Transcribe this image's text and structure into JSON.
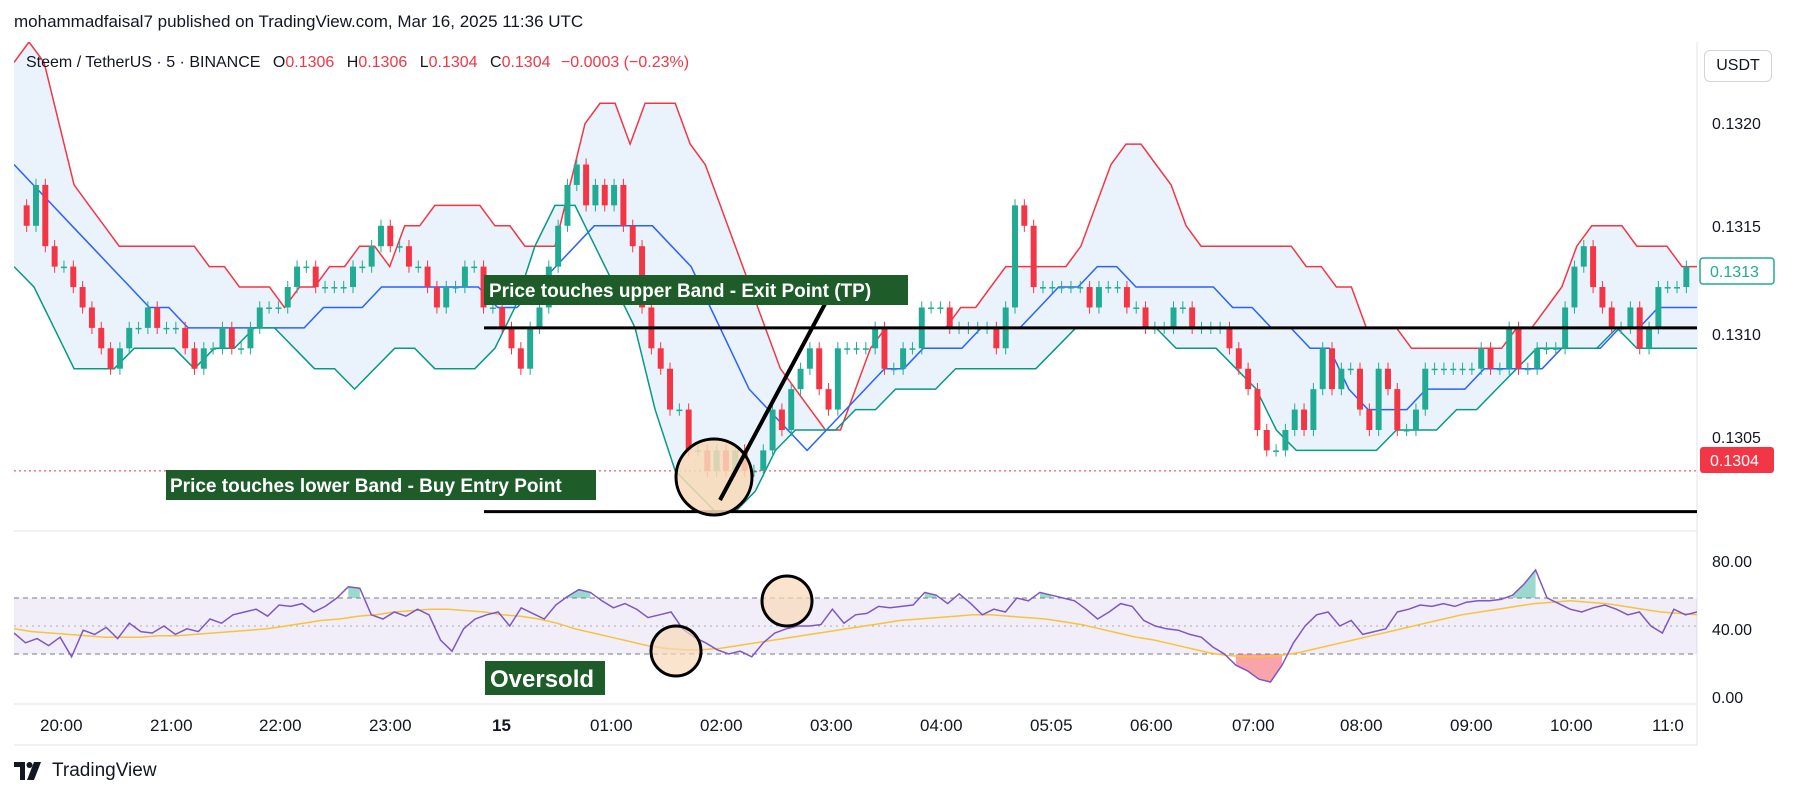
{
  "header": {
    "published": "mohammadfaisal7 published on TradingView.com, Mar 16, 2025 11:36 UTC"
  },
  "symbol_bar": {
    "symbol": "Steem / TetherUS · 5 · BINANCE",
    "o_label": "O",
    "o_value": "0.1306",
    "h_label": "H",
    "h_value": "0.1306",
    "l_label": "L",
    "l_value": "0.1304",
    "c_label": "C",
    "c_value": "0.1304",
    "change": "−0.0003 (−0.23%)"
  },
  "currency_button": "USDT",
  "price_axis": {
    "ticks": [
      "0.1320",
      "0.1315",
      "0.1310",
      "0.1305"
    ],
    "current_price": "0.1304",
    "marker_price": "0.1313"
  },
  "rsi_axis": {
    "ticks": [
      "80.00",
      "40.00",
      "0.00"
    ]
  },
  "time_axis": [
    "20:00",
    "21:00",
    "22:00",
    "23:00",
    "15",
    "01:00",
    "02:00",
    "03:00",
    "04:00",
    "05:05",
    "06:00",
    "07:00",
    "08:00",
    "09:00",
    "10:00",
    "11:0"
  ],
  "annotations": {
    "exit": "Price touches upper Band - Exit Point (TP)",
    "entry": "Price touches lower Band - Buy Entry Point",
    "oversold": "Oversold"
  },
  "footer": {
    "brand": "TradingView"
  },
  "colors": {
    "up": "#22ab94",
    "down": "#f23645",
    "upper_band": "#f23645",
    "lower_band": "#089981",
    "basis": "#2962ff",
    "band_fill": "#eaf3fb",
    "rsi_line": "#7e57c2",
    "rsi_ma": "#f7c33b",
    "annotation_bg": "#1e5c2a",
    "circle_fill": "#f8d9b8"
  },
  "chart_data": [
    {
      "type": "candlestick",
      "title": "Steem / TetherUS · 5 · BINANCE",
      "ylim": [
        0.13012,
        0.1325
      ],
      "y_ticks": [
        0.1305,
        0.131,
        0.1315,
        0.132
      ],
      "x_ticks": [
        "20:00",
        "21:00",
        "22:00",
        "23:00",
        "15",
        "01:00",
        "02:00",
        "03:00",
        "04:00",
        "05:05",
        "06:00",
        "07:00",
        "08:00",
        "09:00",
        "10:00",
        "11:0"
      ],
      "indicators": [
        "Bollinger Bands upper",
        "Bollinger Bands basis",
        "Bollinger Bands lower"
      ],
      "last_price": 0.1304,
      "horizontal_lines": [
        0.1311,
        0.1302
      ],
      "closes": [
        0.1316,
        0.1318,
        0.1315,
        0.1314,
        0.1314,
        0.1313,
        0.1312,
        0.1311,
        0.131,
        0.1309,
        0.131,
        0.1311,
        0.1311,
        0.1312,
        0.1311,
        0.1311,
        0.1311,
        0.131,
        0.1309,
        0.131,
        0.131,
        0.1311,
        0.131,
        0.131,
        0.1311,
        0.1312,
        0.1312,
        0.1312,
        0.1313,
        0.1314,
        0.1314,
        0.1313,
        0.1313,
        0.1313,
        0.1313,
        0.1314,
        0.1314,
        0.1315,
        0.1316,
        0.1315,
        0.1315,
        0.1314,
        0.1314,
        0.1313,
        0.1312,
        0.1313,
        0.1313,
        0.1314,
        0.1314,
        0.1312,
        0.1312,
        0.1311,
        0.131,
        0.1309,
        0.1311,
        0.1312,
        0.1314,
        0.1316,
        0.1318,
        0.1319,
        0.1317,
        0.1318,
        0.1317,
        0.1318,
        0.1316,
        0.1315,
        0.1312,
        0.131,
        0.1309,
        0.1307,
        0.1307,
        0.1305,
        0.1305,
        0.1304,
        0.1305,
        0.1304,
        0.1305,
        0.1304,
        0.1304,
        0.1305,
        0.1307,
        0.1306,
        0.1308,
        0.1309,
        0.131,
        0.1308,
        0.1307,
        0.131,
        0.131,
        0.131,
        0.131,
        0.1311,
        0.1309,
        0.1309,
        0.131,
        0.131,
        0.1312,
        0.1312,
        0.1312,
        0.1311,
        0.1311,
        0.1311,
        0.1311,
        0.1311,
        0.131,
        0.1312,
        0.1317,
        0.1316,
        0.1313,
        0.1313,
        0.1313,
        0.1313,
        0.1313,
        0.1313,
        0.1312,
        0.1313,
        0.1313,
        0.1313,
        0.1312,
        0.1312,
        0.1311,
        0.1311,
        0.1311,
        0.1312,
        0.1312,
        0.1311,
        0.1311,
        0.1311,
        0.1311,
        0.131,
        0.1309,
        0.1308,
        0.1306,
        0.1305,
        0.1305,
        0.1306,
        0.1307,
        0.1306,
        0.1308,
        0.131,
        0.1308,
        0.1309,
        0.1309,
        0.1307,
        0.1306,
        0.1309,
        0.1308,
        0.1306,
        0.1306,
        0.1307,
        0.1309,
        0.1309,
        0.1309,
        0.1309,
        0.1309,
        0.1309,
        0.131,
        0.1309,
        0.1309,
        0.1311,
        0.1309,
        0.1309,
        0.131,
        0.131,
        0.131,
        0.1312,
        0.1314,
        0.1315,
        0.1313,
        0.1312,
        0.1311,
        0.1311,
        0.1312,
        0.131,
        0.1311,
        0.1313,
        0.1313,
        0.1313,
        0.1314
      ],
      "bb_upper": [
        0.1324,
        0.1325,
        0.1324,
        0.1321,
        0.1318,
        0.1317,
        0.1316,
        0.1315,
        0.1315,
        0.1315,
        0.1315,
        0.1315,
        0.1315,
        0.1314,
        0.1314,
        0.1313,
        0.1313,
        0.1313,
        0.1312,
        0.1313,
        0.1313,
        0.1314,
        0.1314,
        0.1315,
        0.1315,
        0.1314,
        0.1316,
        0.1316,
        0.1317,
        0.1317,
        0.1317,
        0.1317,
        0.1316,
        0.1316,
        0.1315,
        0.1315,
        0.1315,
        0.1318,
        0.1321,
        0.1322,
        0.1322,
        0.132,
        0.1322,
        0.1322,
        0.1322,
        0.132,
        0.1319,
        0.1317,
        0.1315,
        0.1313,
        0.1311,
        0.1309,
        0.1308,
        0.1307,
        0.1306,
        0.1306,
        0.1308,
        0.131,
        0.1311,
        0.1311,
        0.1311,
        0.1311,
        0.1311,
        0.1312,
        0.1312,
        0.1313,
        0.1314,
        0.1314,
        0.1314,
        0.1314,
        0.1314,
        0.1315,
        0.1317,
        0.1319,
        0.132,
        0.132,
        0.1319,
        0.1318,
        0.1316,
        0.1315,
        0.1315,
        0.1315,
        0.1315,
        0.1315,
        0.1315,
        0.1315,
        0.1314,
        0.1314,
        0.1313,
        0.1313,
        0.1311,
        0.1311,
        0.1311,
        0.131,
        0.131,
        0.131,
        0.131,
        0.131,
        0.131,
        0.131,
        0.1311,
        0.1311,
        0.1312,
        0.1313,
        0.1315,
        0.1316,
        0.1316,
        0.1316,
        0.1315,
        0.1315,
        0.1315,
        0.1314,
        0.1314
      ],
      "bb_basis": [
        0.1319,
        0.1318,
        0.1317,
        0.1316,
        0.1315,
        0.1314,
        0.1313,
        0.1312,
        0.1312,
        0.1311,
        0.1311,
        0.1311,
        0.1311,
        0.1311,
        0.1311,
        0.1311,
        0.1312,
        0.1312,
        0.1312,
        0.1313,
        0.1313,
        0.1313,
        0.1313,
        0.1313,
        0.1313,
        0.1312,
        0.1312,
        0.1313,
        0.1314,
        0.1315,
        0.1316,
        0.1316,
        0.1316,
        0.1316,
        0.1315,
        0.1314,
        0.1312,
        0.131,
        0.1308,
        0.1307,
        0.1306,
        0.1305,
        0.1306,
        0.1307,
        0.1308,
        0.1309,
        0.1309,
        0.131,
        0.131,
        0.131,
        0.1311,
        0.1311,
        0.1311,
        0.1312,
        0.1313,
        0.1313,
        0.1314,
        0.1314,
        0.1313,
        0.1313,
        0.1313,
        0.1313,
        0.1313,
        0.1312,
        0.1312,
        0.1311,
        0.1311,
        0.131,
        0.131,
        0.1308,
        0.1307,
        0.1307,
        0.1307,
        0.1308,
        0.1308,
        0.1308,
        0.1309,
        0.1309,
        0.1309,
        0.1309,
        0.131,
        0.131,
        0.131,
        0.1311,
        0.1311,
        0.1312,
        0.1312,
        0.1312
      ],
      "bb_lower": [
        0.1314,
        0.1313,
        0.1311,
        0.1309,
        0.1309,
        0.1309,
        0.131,
        0.131,
        0.131,
        0.1309,
        0.131,
        0.131,
        0.1311,
        0.1311,
        0.131,
        0.1309,
        0.1309,
        0.1308,
        0.1309,
        0.131,
        0.131,
        0.1309,
        0.1309,
        0.1309,
        0.131,
        0.1312,
        0.1315,
        0.1317,
        0.1317,
        0.1315,
        0.1313,
        0.1311,
        0.1307,
        0.1304,
        0.1303,
        0.1302,
        0.1302,
        0.1303,
        0.1305,
        0.1306,
        0.1306,
        0.1306,
        0.1307,
        0.1307,
        0.1308,
        0.1308,
        0.1308,
        0.1309,
        0.1309,
        0.1309,
        0.1309,
        0.1309,
        0.131,
        0.1311,
        0.1311,
        0.1311,
        0.1311,
        0.1311,
        0.131,
        0.131,
        0.131,
        0.1309,
        0.1308,
        0.1306,
        0.1305,
        0.1305,
        0.1305,
        0.1305,
        0.1305,
        0.1306,
        0.1306,
        0.1306,
        0.1307,
        0.1307,
        0.1308,
        0.1309,
        0.131,
        0.131,
        0.131,
        0.131,
        0.1311,
        0.131,
        0.131,
        0.131,
        0.131
      ]
    },
    {
      "type": "line",
      "title": "RSI",
      "ylim": [
        0,
        100
      ],
      "y_ticks": [
        0,
        40,
        80
      ],
      "bands": [
        30,
        50,
        70
      ],
      "series": [
        {
          "values": [
            45,
            38,
            41,
            36,
            42,
            28,
            47,
            44,
            49,
            41,
            52,
            46,
            45,
            50,
            44,
            48,
            46,
            55,
            52,
            58,
            60,
            62,
            57,
            65,
            64,
            66,
            60,
            64,
            70,
            78,
            77,
            58,
            55,
            60,
            57,
            62,
            58,
            40,
            32,
            48,
            55,
            58,
            60,
            50,
            63,
            59,
            55,
            65,
            71,
            76,
            74,
            68,
            63,
            66,
            62,
            56,
            58,
            60,
            48,
            42,
            38,
            33,
            30,
            32,
            28,
            38,
            45,
            48,
            50,
            50,
            51,
            62,
            52,
            58,
            59,
            64,
            63,
            64,
            65,
            74,
            72,
            66,
            73,
            66,
            58,
            62,
            60,
            70,
            68,
            74,
            72,
            70,
            68,
            62,
            55,
            60,
            66,
            64,
            54,
            50,
            48,
            47,
            44,
            42,
            35,
            30,
            22,
            18,
            12,
            10,
            22,
            38,
            50,
            58,
            60,
            50,
            54,
            44,
            46,
            48,
            60,
            62,
            65,
            64,
            66,
            64,
            67,
            68,
            68,
            69,
            72,
            80,
            90,
            70,
            66,
            62,
            60,
            63,
            65,
            62,
            58,
            60,
            50,
            45,
            62,
            58,
            60
          ]
        },
        {
          "values": [
            48,
            46,
            45,
            44,
            43,
            42,
            42,
            42,
            43,
            43,
            44,
            45,
            46,
            47,
            48,
            50,
            52,
            54,
            55,
            57,
            58,
            60,
            61,
            62,
            62,
            61,
            60,
            58,
            57,
            55,
            52,
            48,
            45,
            42,
            39,
            36,
            34,
            33,
            33,
            34,
            36,
            38,
            40,
            42,
            44,
            46,
            48,
            50,
            52,
            54,
            55,
            56,
            57,
            58,
            58,
            57,
            56,
            55,
            53,
            51,
            48,
            45,
            42,
            40,
            37,
            34,
            31,
            29,
            28,
            28,
            29,
            31,
            34,
            37,
            40,
            43,
            46,
            49,
            52,
            55,
            58,
            60,
            62,
            64,
            66,
            67,
            68,
            67,
            66,
            64,
            62,
            60,
            59,
            58
          ]
        }
      ]
    }
  ]
}
